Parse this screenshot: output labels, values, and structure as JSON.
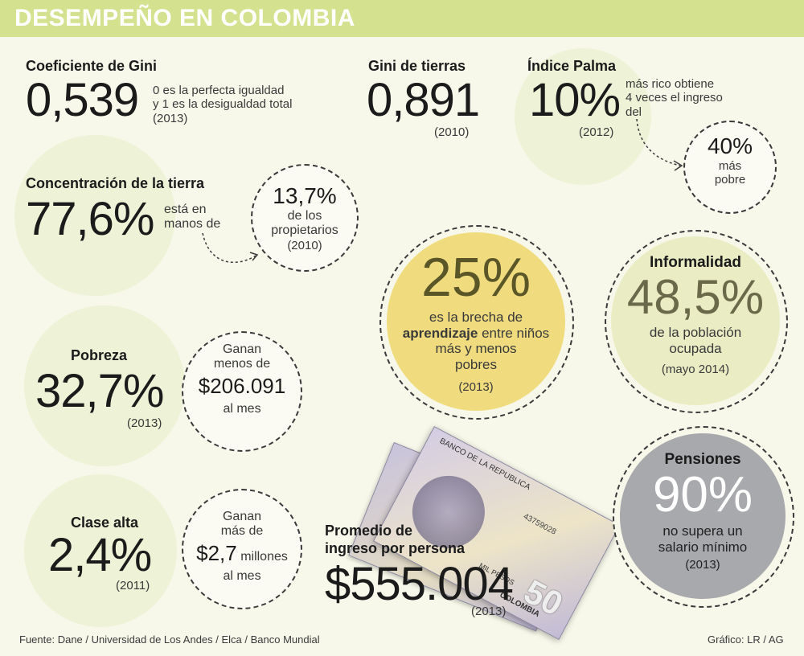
{
  "title": "DESEMPEÑO EN COLOMBIA",
  "gini": {
    "label": "Coeficiente de Gini",
    "value": "0,539",
    "note_line1": "0 es la perfecta igualdad",
    "note_line2": "y 1 es la desigualdad total",
    "year": "(2013)"
  },
  "gini_tierras": {
    "label": "Gini de tierras",
    "value": "0,891",
    "year": "(2010)"
  },
  "palma": {
    "label": "Índice Palma",
    "value": "10%",
    "note_line1": "más rico obtiene",
    "note_line2": "4 veces el ingreso",
    "note_line3": "del",
    "year": "(2012)",
    "circle_value": "40%",
    "circle_line1": "más",
    "circle_line2": "pobre"
  },
  "tierra": {
    "label": "Concentración de la tierra",
    "value": "77,6%",
    "note_line1": "está en",
    "note_line2": "manos de",
    "circle_value": "13,7%",
    "circle_line1": "de los",
    "circle_line2": "propietarios",
    "circle_year": "(2010)"
  },
  "brecha": {
    "value": "25%",
    "line1": "es la brecha de",
    "bold_word": "aprendizaje",
    "line2_rest": " entre niños",
    "line3": "más y menos",
    "line4": "pobres",
    "year": "(2013)"
  },
  "informalidad": {
    "label": "Informalidad",
    "value": "48,5%",
    "line1": "de la población",
    "line2": "ocupada",
    "year": "(mayo 2014)"
  },
  "pobreza": {
    "label": "Pobreza",
    "value": "32,7%",
    "year": "(2013)",
    "circle_line1": "Ganan",
    "circle_line2": "menos de",
    "circle_value": "$206.091",
    "circle_line3": "al mes"
  },
  "clase_alta": {
    "label": "Clase alta",
    "value": "2,4%",
    "year": "(2011)",
    "circle_line1": "Ganan",
    "circle_line2": "más de",
    "circle_value": "$2,7",
    "circle_unit": "millones",
    "circle_line3": "al mes"
  },
  "ingreso": {
    "label_line1": "Promedio de",
    "label_line2": "ingreso por persona",
    "value": "$555.004",
    "year": "(2013)"
  },
  "pensiones": {
    "label": "Pensiones",
    "value": "90%",
    "line1": "no supera un",
    "line2": "salario mínimo",
    "year": "(2013)"
  },
  "banknote": {
    "bank": "BANCO DE LA REPUBLICA",
    "country": "COLOMBIA",
    "denomination": "50",
    "word": "MIL PESOS",
    "serial": "43759028"
  },
  "footer": {
    "source": "Fuente: Dane / Universidad de Los Andes / Elca / Banco Mundial",
    "credit": "Gráfico: LR / AG"
  },
  "colors": {
    "header": "#d4e18f",
    "yellow_circle": "#f0dc7f",
    "light_green_circle": "#eaedc4",
    "gray_circle": "#a8a9ad",
    "background": "#f7f8ea"
  }
}
